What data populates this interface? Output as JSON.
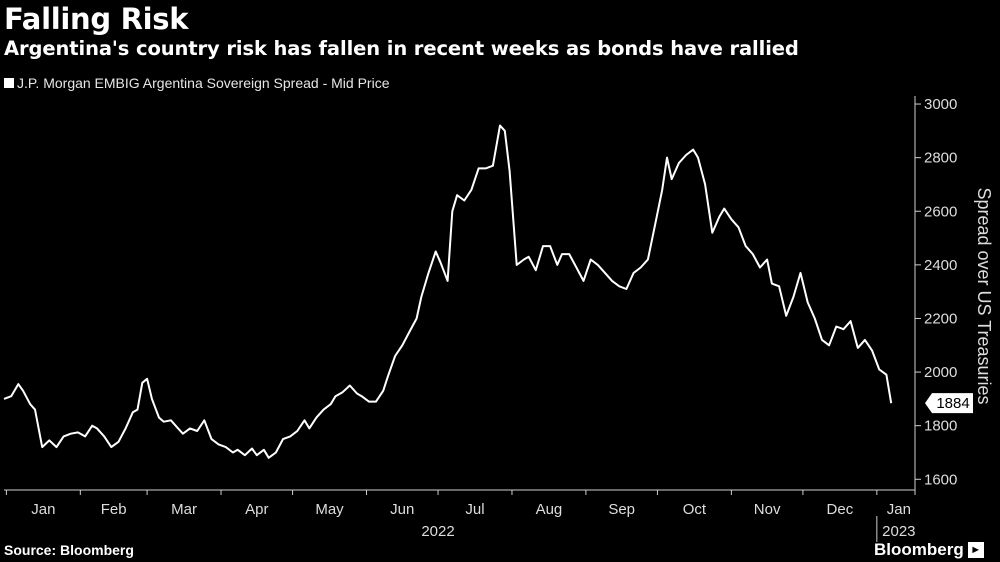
{
  "header": {
    "title": "Falling Risk",
    "subtitle": "Argentina's country risk has fallen in recent weeks as bonds have rallied"
  },
  "footer": {
    "source": "Source: Bloomberg",
    "brand": "Bloomberg",
    "brand_icon": "bloomberg-logo-icon"
  },
  "colors": {
    "background": "#000000",
    "line": "#ffffff",
    "text": "#ffffff"
  },
  "chart_data": {
    "type": "line",
    "title": "Falling Risk",
    "subtitle": "Argentina's country risk has fallen in recent weeks as bonds have rallied",
    "xlabel": "",
    "ylabel": "Spread over US Treasuries",
    "ylim": [
      1560,
      3030
    ],
    "y_ticks": [
      1600,
      1800,
      2000,
      2200,
      2400,
      2600,
      2800,
      3000
    ],
    "y_axis_side": "right",
    "grid": false,
    "legend_position": "top-left",
    "x_ticks": [
      {
        "label": "Jan",
        "date": "2022-01-01"
      },
      {
        "label": "Feb",
        "date": "2022-02-01"
      },
      {
        "label": "Mar",
        "date": "2022-03-01"
      },
      {
        "label": "Apr",
        "date": "2022-04-01"
      },
      {
        "label": "May",
        "date": "2022-05-01"
      },
      {
        "label": "Jun",
        "date": "2022-06-01"
      },
      {
        "label": "Jul",
        "date": "2022-07-01"
      },
      {
        "label": "Aug",
        "date": "2022-08-01"
      },
      {
        "label": "Sep",
        "date": "2022-09-01"
      },
      {
        "label": "Oct",
        "date": "2022-10-01"
      },
      {
        "label": "Nov",
        "date": "2022-11-01"
      },
      {
        "label": "Dec",
        "date": "2022-12-01"
      },
      {
        "label": "Jan",
        "date": "2023-01-01"
      }
    ],
    "year_labels": [
      {
        "label": "2022",
        "date": "2022-07-01"
      },
      {
        "label": "2023",
        "date": "2023-01-01"
      }
    ],
    "last_value_label": "1884",
    "series": [
      {
        "name": "J.P. Morgan EMBIG Argentina Sovereign Spread - Mid Price",
        "points": [
          [
            "2021-12-31",
            1900
          ],
          [
            "2022-01-03",
            1910
          ],
          [
            "2022-01-06",
            1955
          ],
          [
            "2022-01-08",
            1930
          ],
          [
            "2022-01-11",
            1880
          ],
          [
            "2022-01-13",
            1860
          ],
          [
            "2022-01-16",
            1720
          ],
          [
            "2022-01-19",
            1745
          ],
          [
            "2022-01-22",
            1720
          ],
          [
            "2022-01-25",
            1760
          ],
          [
            "2022-01-28",
            1770
          ],
          [
            "2022-01-31",
            1775
          ],
          [
            "2022-02-03",
            1760
          ],
          [
            "2022-02-06",
            1800
          ],
          [
            "2022-02-08",
            1790
          ],
          [
            "2022-02-11",
            1760
          ],
          [
            "2022-02-14",
            1720
          ],
          [
            "2022-02-17",
            1740
          ],
          [
            "2022-02-20",
            1790
          ],
          [
            "2022-02-23",
            1850
          ],
          [
            "2022-02-25",
            1860
          ],
          [
            "2022-02-27",
            1960
          ],
          [
            "2022-03-01",
            1975
          ],
          [
            "2022-03-03",
            1900
          ],
          [
            "2022-03-06",
            1830
          ],
          [
            "2022-03-08",
            1815
          ],
          [
            "2022-03-11",
            1820
          ],
          [
            "2022-03-14",
            1790
          ],
          [
            "2022-03-16",
            1770
          ],
          [
            "2022-03-19",
            1790
          ],
          [
            "2022-03-22",
            1780
          ],
          [
            "2022-03-25",
            1820
          ],
          [
            "2022-03-28",
            1750
          ],
          [
            "2022-03-31",
            1730
          ],
          [
            "2022-04-03",
            1720
          ],
          [
            "2022-04-06",
            1700
          ],
          [
            "2022-04-08",
            1710
          ],
          [
            "2022-04-11",
            1690
          ],
          [
            "2022-04-14",
            1715
          ],
          [
            "2022-04-16",
            1690
          ],
          [
            "2022-04-19",
            1710
          ],
          [
            "2022-04-21",
            1680
          ],
          [
            "2022-04-24",
            1700
          ],
          [
            "2022-04-27",
            1750
          ],
          [
            "2022-04-30",
            1760
          ],
          [
            "2022-05-03",
            1780
          ],
          [
            "2022-05-06",
            1820
          ],
          [
            "2022-05-08",
            1790
          ],
          [
            "2022-05-11",
            1830
          ],
          [
            "2022-05-14",
            1860
          ],
          [
            "2022-05-17",
            1880
          ],
          [
            "2022-05-19",
            1910
          ],
          [
            "2022-05-22",
            1925
          ],
          [
            "2022-05-25",
            1950
          ],
          [
            "2022-05-28",
            1920
          ],
          [
            "2022-05-30",
            1910
          ],
          [
            "2022-06-02",
            1890
          ],
          [
            "2022-06-05",
            1890
          ],
          [
            "2022-06-08",
            1930
          ],
          [
            "2022-06-10",
            1985
          ],
          [
            "2022-06-13",
            2060
          ],
          [
            "2022-06-16",
            2100
          ],
          [
            "2022-06-19",
            2150
          ],
          [
            "2022-06-22",
            2200
          ],
          [
            "2022-06-24",
            2280
          ],
          [
            "2022-06-27",
            2370
          ],
          [
            "2022-06-30",
            2450
          ],
          [
            "2022-07-02",
            2410
          ],
          [
            "2022-07-05",
            2340
          ],
          [
            "2022-07-07",
            2600
          ],
          [
            "2022-07-09",
            2660
          ],
          [
            "2022-07-12",
            2640
          ],
          [
            "2022-07-15",
            2680
          ],
          [
            "2022-07-18",
            2760
          ],
          [
            "2022-07-21",
            2760
          ],
          [
            "2022-07-24",
            2770
          ],
          [
            "2022-07-27",
            2920
          ],
          [
            "2022-07-29",
            2900
          ],
          [
            "2022-07-31",
            2750
          ],
          [
            "2022-08-03",
            2400
          ],
          [
            "2022-08-06",
            2420
          ],
          [
            "2022-08-08",
            2430
          ],
          [
            "2022-08-11",
            2380
          ],
          [
            "2022-08-14",
            2470
          ],
          [
            "2022-08-17",
            2470
          ],
          [
            "2022-08-20",
            2400
          ],
          [
            "2022-08-22",
            2440
          ],
          [
            "2022-08-25",
            2440
          ],
          [
            "2022-08-28",
            2390
          ],
          [
            "2022-08-31",
            2340
          ],
          [
            "2022-09-03",
            2420
          ],
          [
            "2022-09-06",
            2400
          ],
          [
            "2022-09-09",
            2370
          ],
          [
            "2022-09-12",
            2340
          ],
          [
            "2022-09-15",
            2320
          ],
          [
            "2022-09-18",
            2310
          ],
          [
            "2022-09-21",
            2370
          ],
          [
            "2022-09-24",
            2390
          ],
          [
            "2022-09-27",
            2420
          ],
          [
            "2022-09-30",
            2550
          ],
          [
            "2022-10-03",
            2680
          ],
          [
            "2022-10-05",
            2800
          ],
          [
            "2022-10-07",
            2720
          ],
          [
            "2022-10-10",
            2780
          ],
          [
            "2022-10-13",
            2810
          ],
          [
            "2022-10-16",
            2830
          ],
          [
            "2022-10-18",
            2800
          ],
          [
            "2022-10-21",
            2700
          ],
          [
            "2022-10-24",
            2520
          ],
          [
            "2022-10-27",
            2580
          ],
          [
            "2022-10-29",
            2610
          ],
          [
            "2022-11-01",
            2570
          ],
          [
            "2022-11-04",
            2540
          ],
          [
            "2022-11-07",
            2470
          ],
          [
            "2022-11-10",
            2440
          ],
          [
            "2022-11-13",
            2390
          ],
          [
            "2022-11-16",
            2420
          ],
          [
            "2022-11-18",
            2330
          ],
          [
            "2022-11-21",
            2320
          ],
          [
            "2022-11-24",
            2210
          ],
          [
            "2022-11-27",
            2280
          ],
          [
            "2022-11-30",
            2370
          ],
          [
            "2022-12-03",
            2260
          ],
          [
            "2022-12-06",
            2200
          ],
          [
            "2022-12-09",
            2120
          ],
          [
            "2022-12-12",
            2100
          ],
          [
            "2022-12-15",
            2170
          ],
          [
            "2022-12-18",
            2160
          ],
          [
            "2022-12-21",
            2190
          ],
          [
            "2022-12-24",
            2090
          ],
          [
            "2022-12-27",
            2120
          ],
          [
            "2022-12-30",
            2080
          ],
          [
            "2023-01-02",
            2010
          ],
          [
            "2023-01-05",
            1990
          ],
          [
            "2023-01-07",
            1884
          ]
        ]
      }
    ]
  }
}
